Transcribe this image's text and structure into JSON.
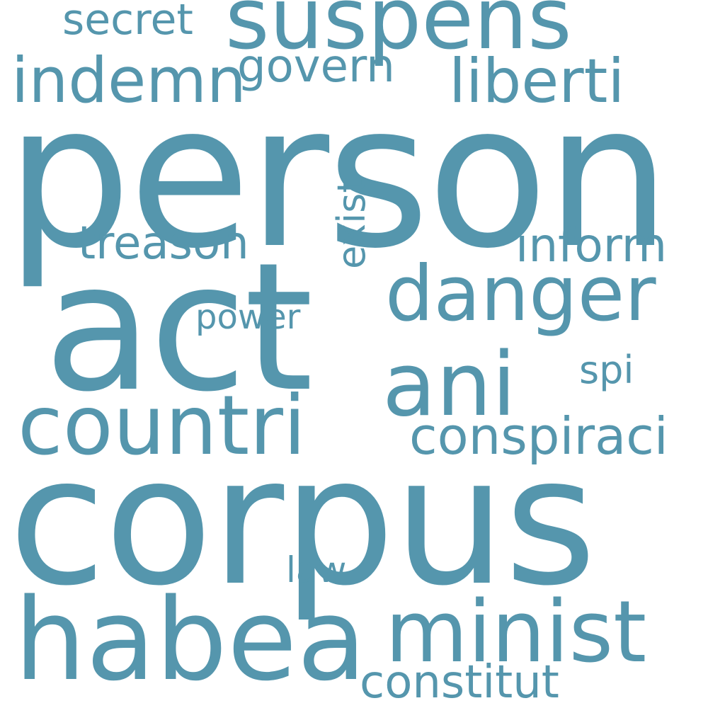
{
  "word_color": "#5596ad",
  "background": "#ffffff",
  "words": [
    {
      "text": "suspens"
    },
    {
      "text": "secret"
    },
    {
      "text": "indemn"
    },
    {
      "text": "govern"
    },
    {
      "text": "liberti"
    },
    {
      "text": "person"
    },
    {
      "text": "exist"
    },
    {
      "text": "treason"
    },
    {
      "text": "inform"
    },
    {
      "text": "act"
    },
    {
      "text": "danger"
    },
    {
      "text": "power"
    },
    {
      "text": "spi"
    },
    {
      "text": "ani"
    },
    {
      "text": "countri"
    },
    {
      "text": "conspiraci"
    },
    {
      "text": "corpus"
    },
    {
      "text": "law"
    },
    {
      "text": "habea"
    },
    {
      "text": "minist"
    },
    {
      "text": "constitut"
    }
  ]
}
